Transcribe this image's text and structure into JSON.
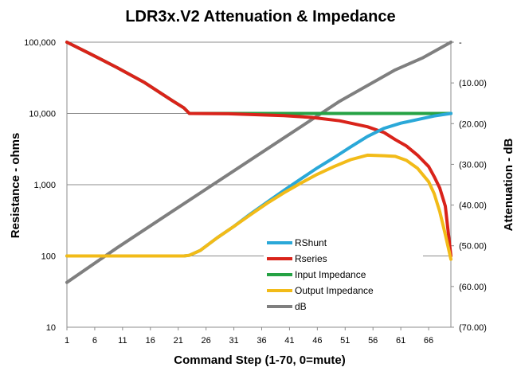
{
  "chart_data": {
    "type": "line",
    "title": "LDR3x.V2 Attenuation & Impedance",
    "xlabel": "Command Step (1-70,  0=mute)",
    "ylabel": "Resistance - ohms",
    "y2label": "Attenuation - dB",
    "x_ticks": [
      "1",
      "6",
      "11",
      "16",
      "21",
      "26",
      "31",
      "36",
      "41",
      "46",
      "51",
      "56",
      "61",
      "66"
    ],
    "y_ticks": [
      "10",
      "100",
      "1,000",
      "10,000",
      "100,000"
    ],
    "y2_ticks": [
      "-",
      "(10.00)",
      "(20.00)",
      "(30.00)",
      "(40.00)",
      "(50.00)",
      "(60.00)",
      "(70.00)"
    ],
    "xlim": [
      1,
      70
    ],
    "ylim": [
      10,
      100000
    ],
    "y_scale": "log",
    "y2lim": [
      -70,
      0
    ],
    "grid": "horizontal",
    "legend_position": "center-right",
    "series": [
      {
        "name": "RShunt",
        "color": "#2aa8d8",
        "axis": "left",
        "x": [
          1,
          22,
          23,
          25,
          28,
          31,
          34,
          37,
          40,
          43,
          46,
          49,
          52,
          55,
          58,
          61,
          64,
          67,
          70
        ],
        "values": [
          100,
          100,
          102,
          120,
          180,
          260,
          390,
          570,
          830,
          1200,
          1720,
          2400,
          3400,
          4750,
          6200,
          7300,
          8200,
          9200,
          10000
        ]
      },
      {
        "name": "Rseries",
        "color": "#d9231a",
        "axis": "left",
        "x": [
          1,
          5,
          10,
          15,
          20,
          22,
          23,
          30,
          40,
          45,
          50,
          55,
          58,
          60,
          62,
          64,
          66,
          67,
          68,
          69,
          70
        ],
        "values": [
          100000,
          70000,
          44000,
          27000,
          15000,
          12000,
          10000,
          9900,
          9300,
          8800,
          7900,
          6500,
          5400,
          4300,
          3500,
          2600,
          1800,
          1300,
          900,
          500,
          100
        ]
      },
      {
        "name": "Input Impedance",
        "color": "#25a244",
        "axis": "left",
        "x": [
          1,
          5,
          10,
          15,
          20,
          22,
          23,
          30,
          40,
          50,
          60,
          70
        ],
        "values": [
          100000,
          70000,
          44000,
          27000,
          15000,
          12000,
          10000,
          10000,
          10000,
          10000,
          10000,
          10000
        ]
      },
      {
        "name": "Output Impedance",
        "color": "#f2bb18",
        "axis": "left",
        "x": [
          1,
          22,
          23,
          25,
          28,
          31,
          34,
          37,
          40,
          43,
          46,
          49,
          52,
          55,
          58,
          60,
          62,
          64,
          66,
          67,
          68,
          69,
          70
        ],
        "values": [
          100,
          100,
          102,
          120,
          180,
          260,
          380,
          550,
          770,
          1050,
          1400,
          1800,
          2250,
          2600,
          2550,
          2500,
          2200,
          1700,
          1100,
          750,
          420,
          200,
          90
        ]
      },
      {
        "name": "dB",
        "color": "#7f7f7f",
        "axis": "right",
        "x": [
          1,
          10,
          20,
          30,
          40,
          50,
          60,
          65,
          70
        ],
        "values": [
          -59,
          -50.5,
          -41.5,
          -32.5,
          -23.5,
          -14.5,
          -6.8,
          -3.8,
          0
        ]
      }
    ]
  }
}
